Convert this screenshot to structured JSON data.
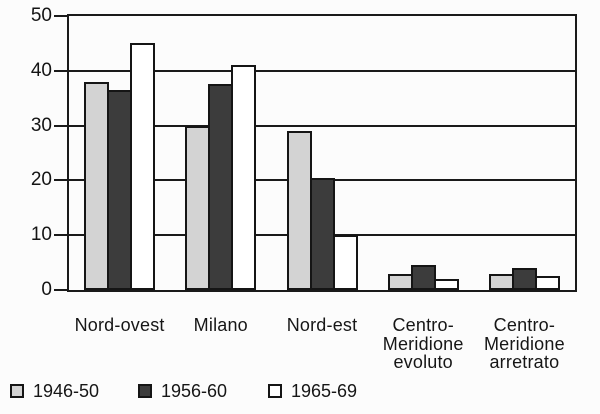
{
  "chart_data": {
    "type": "bar",
    "title": "",
    "xlabel": "",
    "ylabel": "",
    "axis": {
      "ymax": 50,
      "yticks": [
        0,
        10,
        20,
        30,
        40,
        50
      ],
      "grid": true
    },
    "categories": [
      {
        "label": "Nord-ovest",
        "lines": [
          "Nord-ovest"
        ]
      },
      {
        "label": "Milano",
        "lines": [
          "Milano"
        ]
      },
      {
        "label": "Nord-est",
        "lines": [
          "Nord-est"
        ]
      },
      {
        "label": "Centro-Meridione evoluto",
        "lines": [
          "Centro-",
          "Meridione",
          "evoluto"
        ]
      },
      {
        "label": "Centro-Meridione arretrato",
        "lines": [
          "Centro-",
          "Meridione",
          "arretrato"
        ]
      }
    ],
    "series": [
      {
        "name": "1946-50",
        "color": "#d3d3d3",
        "values": [
          38,
          30,
          29,
          3,
          3
        ]
      },
      {
        "name": "1956-60",
        "color": "#3c3c3c",
        "values": [
          36.5,
          37.5,
          20.5,
          4.5,
          4
        ]
      },
      {
        "name": "1965-69",
        "color": "#ffffff",
        "values": [
          45,
          41,
          10,
          2,
          2.5
        ]
      }
    ],
    "legend": {
      "position": "bottom-left",
      "entries": [
        "1946-50",
        "1956-60",
        "1965-69"
      ]
    },
    "colors": {
      "bar_border": "#151515",
      "grid_color": "#1a1a1a",
      "background": "#fcfcfc"
    }
  }
}
